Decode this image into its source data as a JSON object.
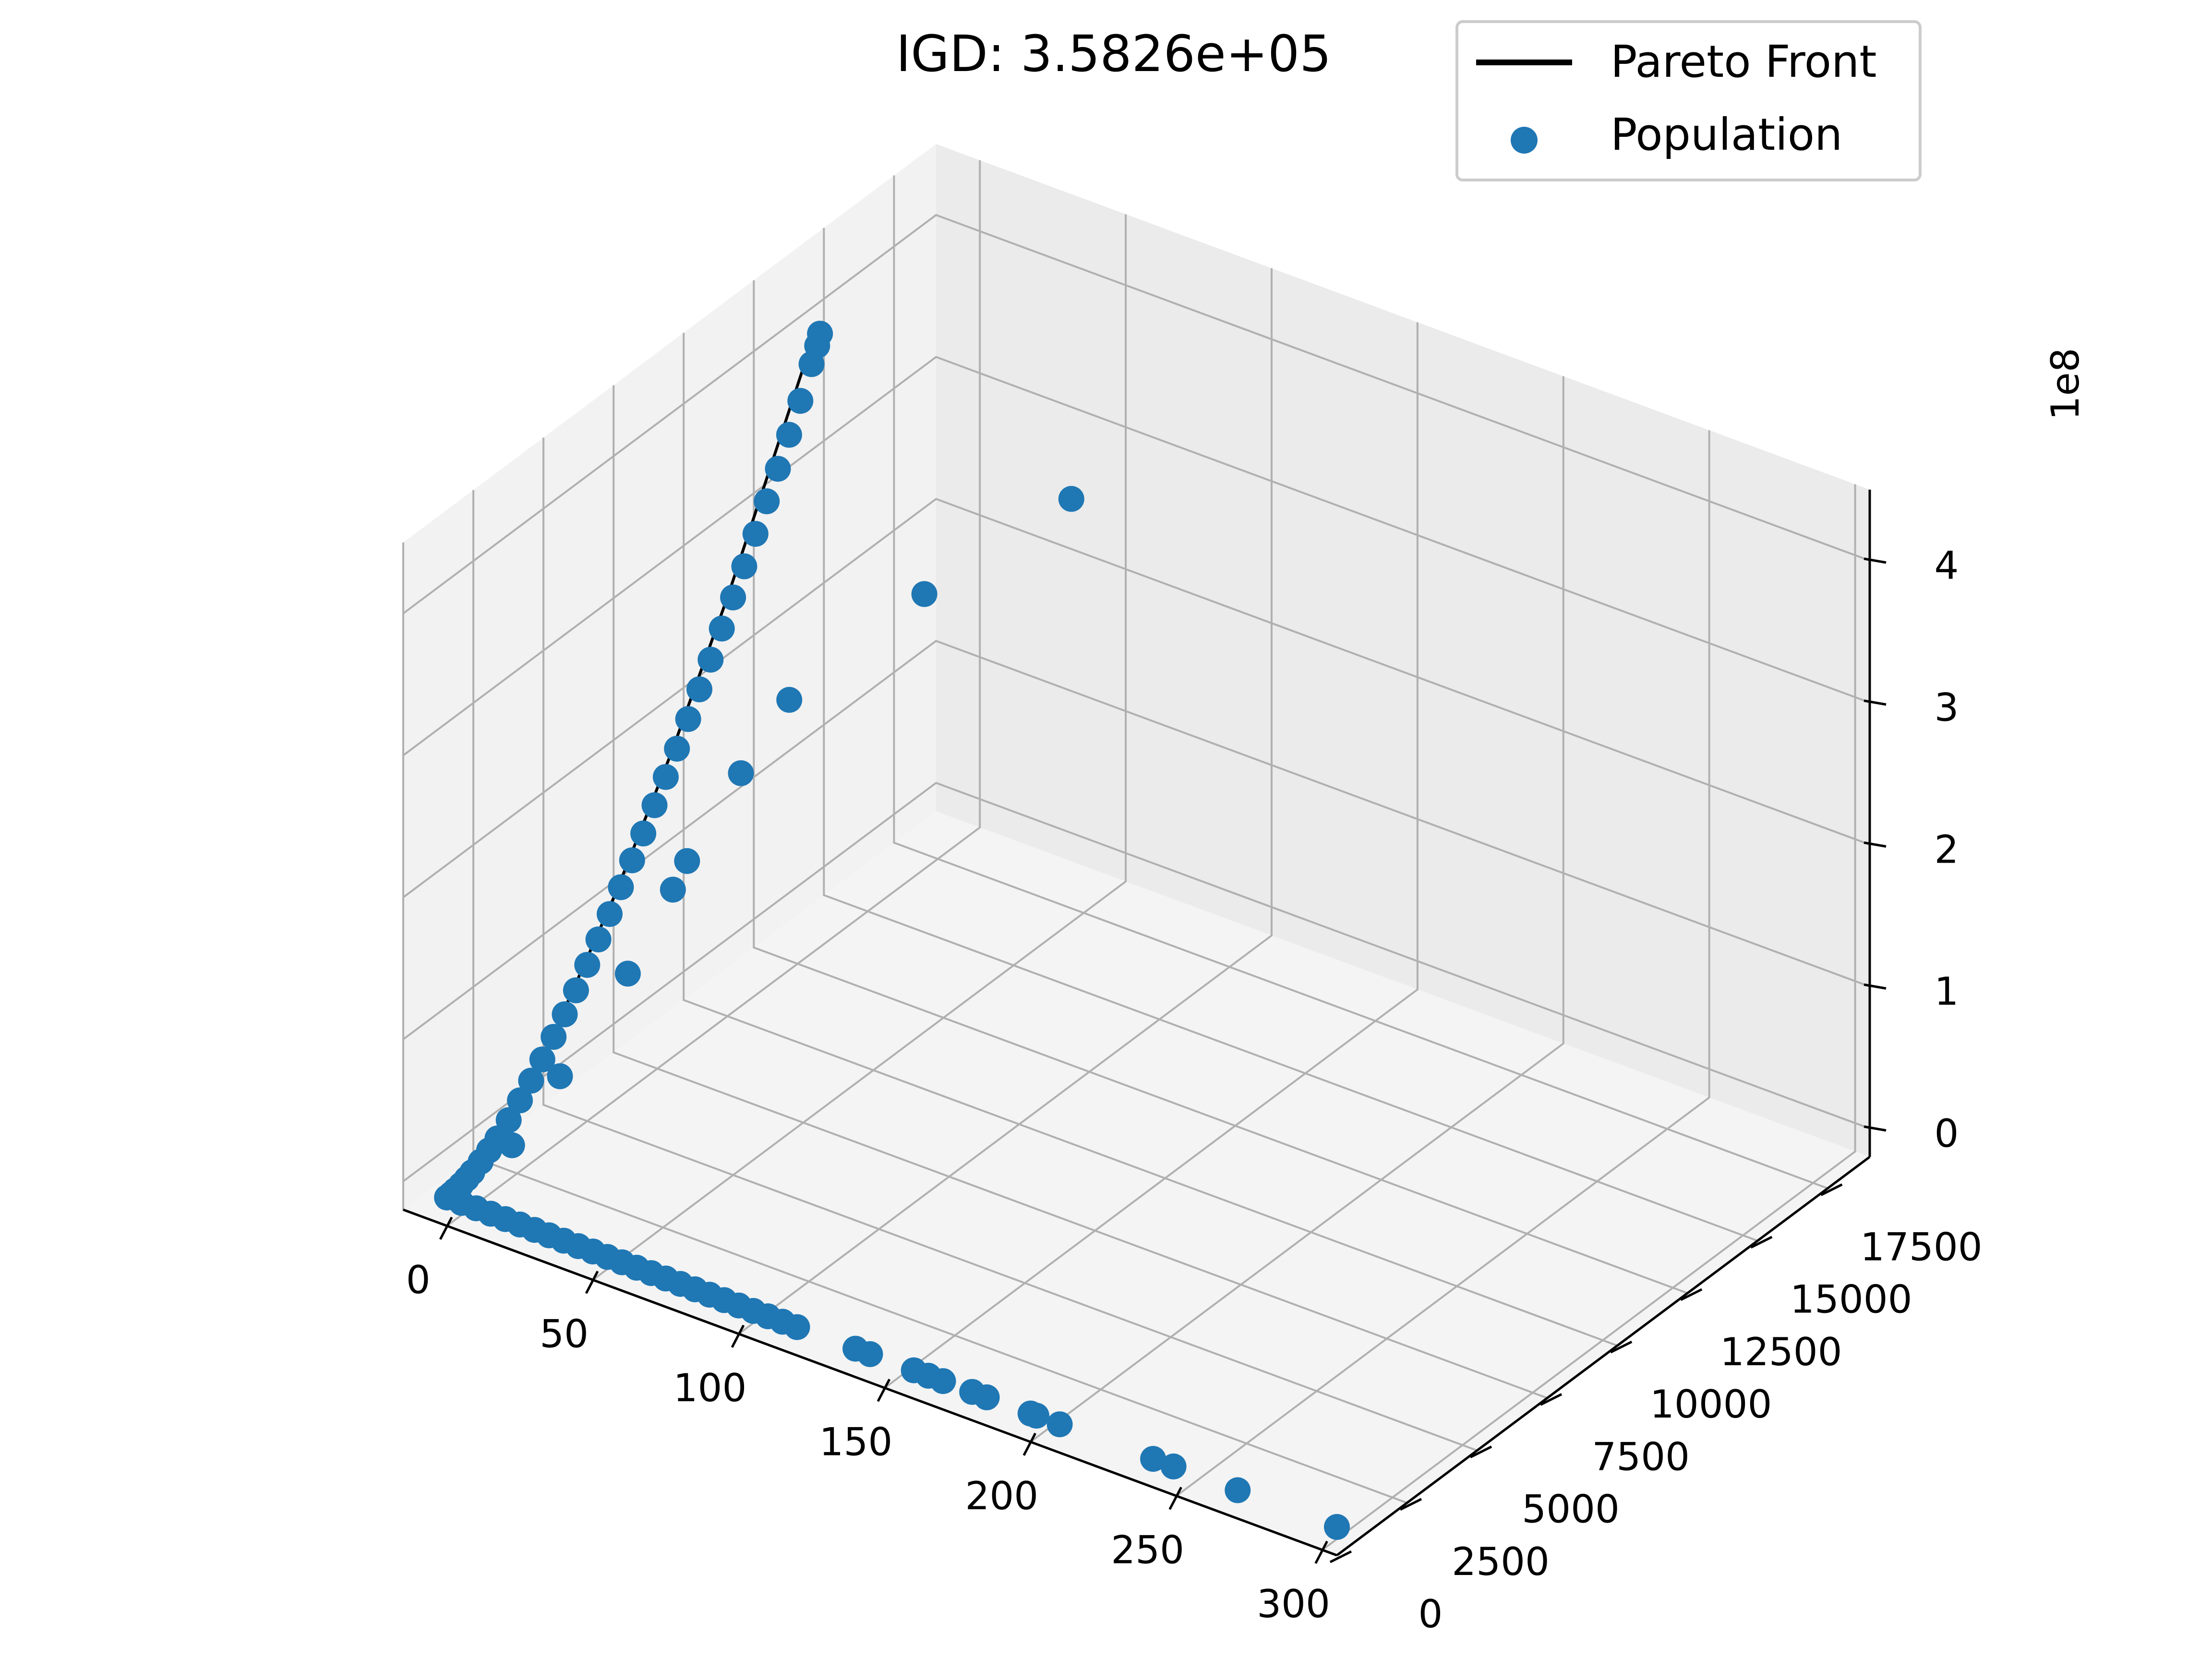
{
  "title": "IGD: 3.5826e+05",
  "legend": {
    "placement": "top-right",
    "entries": [
      {
        "label": "Pareto Front",
        "kind": "line",
        "color": "#000000"
      },
      {
        "label": "Population",
        "kind": "marker",
        "color": "#1f77b4"
      }
    ]
  },
  "colors": {
    "population": "#1f77b4",
    "pareto_front": "#000000",
    "pane_left": "#f2f2f2",
    "pane_back": "#ebebeb",
    "pane_floor": "#f4f4f4",
    "grid": "#b0b0b0",
    "axis": "#000000"
  },
  "chart_data": {
    "type": "scatter",
    "projection": "3d",
    "title": "IGD: 3.5826e+05",
    "grid": true,
    "xlim": [
      -15,
      305
    ],
    "ylim": [
      0,
      19000
    ],
    "zlim": [
      -20000000,
      450000000
    ],
    "x_ticks": [
      "0",
      "50",
      "100",
      "150",
      "200",
      "250",
      "300"
    ],
    "y_ticks": [
      "0",
      "2500",
      "5000",
      "7500",
      "10000",
      "12500",
      "15000",
      "17500"
    ],
    "z_ticks": [
      "0",
      "1",
      "2",
      "3",
      "4"
    ],
    "z_offset_label": "1e8",
    "series": [
      {
        "name": "Pareto Front",
        "kind": "line",
        "points": [
          [
            0,
            0,
            0
          ],
          [
            0,
            400,
            1000000
          ],
          [
            0,
            1000,
            6000000
          ],
          [
            0,
            2000,
            20000000
          ],
          [
            0,
            3000,
            40000000
          ],
          [
            0,
            4000,
            65000000
          ],
          [
            0,
            5000,
            95000000
          ],
          [
            0,
            6000,
            125000000
          ],
          [
            0,
            7000,
            160000000
          ],
          [
            0,
            8000,
            195000000
          ],
          [
            0,
            9000,
            235000000
          ],
          [
            0,
            10000,
            275000000
          ],
          [
            0,
            11000,
            320000000
          ],
          [
            0,
            12000,
            365000000
          ],
          [
            0,
            13000,
            410000000
          ],
          [
            0,
            13200,
            420000000
          ]
        ]
      },
      {
        "name": "Population",
        "kind": "scatter",
        "points": [
          [
            0,
            0,
            0
          ],
          [
            0,
            150,
            200000
          ],
          [
            0,
            300,
            700000
          ],
          [
            0,
            500,
            1500000
          ],
          [
            0,
            700,
            2800000
          ],
          [
            0,
            900,
            4500000
          ],
          [
            0,
            1200,
            7500000
          ],
          [
            0,
            1500,
            11000000
          ],
          [
            0,
            1800,
            15000000
          ],
          [
            0,
            2200,
            22000000
          ],
          [
            0,
            2600,
            30000000
          ],
          [
            0,
            3000,
            38000000
          ],
          [
            0,
            3400,
            47000000
          ],
          [
            0,
            3800,
            57000000
          ],
          [
            0,
            4200,
            67000000
          ],
          [
            0,
            4600,
            78000000
          ],
          [
            0,
            5000,
            90000000
          ],
          [
            0,
            5400,
            102000000
          ],
          [
            0,
            5800,
            114000000
          ],
          [
            0,
            6200,
            127000000
          ],
          [
            0,
            6600,
            140000000
          ],
          [
            0,
            7000,
            153000000
          ],
          [
            0,
            7400,
            167000000
          ],
          [
            0,
            7800,
            181000000
          ],
          [
            0,
            8200,
            195000000
          ],
          [
            0,
            8600,
            210000000
          ],
          [
            0,
            9000,
            225000000
          ],
          [
            0,
            9400,
            240000000
          ],
          [
            0,
            9800,
            256000000
          ],
          [
            0,
            10200,
            272000000
          ],
          [
            0,
            10600,
            288000000
          ],
          [
            0,
            11000,
            305000000
          ],
          [
            0,
            11400,
            322000000
          ],
          [
            0,
            11800,
            339000000
          ],
          [
            0,
            12200,
            357000000
          ],
          [
            0,
            12600,
            375000000
          ],
          [
            0,
            13000,
            395000000
          ],
          [
            0,
            13200,
            405000000
          ],
          [
            0,
            13300,
            412000000
          ],
          [
            5,
            1800,
            14000000
          ],
          [
            7,
            3300,
            42000000
          ],
          [
            12,
            5200,
            90000000
          ],
          [
            14,
            6600,
            130000000
          ],
          [
            26,
            9500,
            230000000
          ],
          [
            55,
            11300,
            300000000
          ],
          [
            90,
            12900,
            370000000
          ],
          [
            15,
            7000,
            145000000
          ],
          [
            20,
            8400,
            190000000
          ],
          [
            5,
            0,
            0
          ],
          [
            10,
            0,
            0
          ],
          [
            15,
            0,
            0
          ],
          [
            20,
            0,
            0
          ],
          [
            25,
            0,
            0
          ],
          [
            30,
            0,
            0
          ],
          [
            35,
            0,
            0
          ],
          [
            40,
            0,
            0
          ],
          [
            45,
            0,
            0
          ],
          [
            50,
            0,
            0
          ],
          [
            55,
            0,
            0
          ],
          [
            60,
            0,
            0
          ],
          [
            65,
            0,
            0
          ],
          [
            70,
            0,
            0
          ],
          [
            75,
            0,
            0
          ],
          [
            80,
            0,
            0
          ],
          [
            85,
            0,
            0
          ],
          [
            90,
            0,
            0
          ],
          [
            95,
            0,
            0
          ],
          [
            100,
            0,
            0
          ],
          [
            105,
            0,
            0
          ],
          [
            110,
            0,
            0
          ],
          [
            115,
            0,
            0
          ],
          [
            120,
            0,
            0
          ],
          [
            140,
            0,
            0
          ],
          [
            145,
            0,
            0
          ],
          [
            160,
            0,
            0
          ],
          [
            165,
            0,
            0
          ],
          [
            170,
            0,
            0
          ],
          [
            180,
            0,
            0
          ],
          [
            185,
            0,
            0
          ],
          [
            200,
            0,
            0
          ],
          [
            202,
            0,
            0
          ],
          [
            210,
            0,
            0
          ],
          [
            242,
            0,
            0
          ],
          [
            249,
            0,
            0
          ],
          [
            271,
            0,
            0
          ],
          [
            305,
            0,
            0
          ]
        ]
      }
    ]
  }
}
